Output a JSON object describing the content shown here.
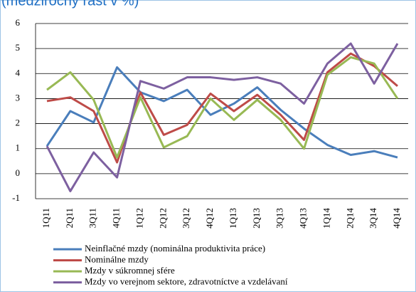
{
  "chart_data": {
    "type": "line",
    "title": "(medziročný rast v %)",
    "categories": [
      "1Q11",
      "2Q11",
      "3Q11",
      "4Q11",
      "1Q12",
      "2Q12",
      "3Q12",
      "4Q12",
      "1Q13",
      "2Q13",
      "3Q13",
      "4Q13",
      "1Q14",
      "2Q14",
      "3Q14",
      "4Q14"
    ],
    "series": [
      {
        "name": "Neinflačné mzdy (nominálna produktivita práce)",
        "color": "#4a7ebb",
        "values": [
          1.1,
          2.5,
          2.05,
          4.25,
          3.25,
          2.9,
          3.35,
          2.35,
          2.8,
          3.45,
          2.55,
          1.8,
          1.15,
          0.75,
          0.9,
          0.65
        ]
      },
      {
        "name": "Nominálne mzdy",
        "color": "#be4b48",
        "values": [
          2.9,
          3.05,
          2.5,
          0.45,
          3.25,
          1.55,
          1.95,
          3.2,
          2.5,
          3.15,
          2.35,
          1.35,
          4.05,
          4.8,
          4.3,
          3.5
        ]
      },
      {
        "name": "Mzdy v súkromnej sfére",
        "color": "#98b954",
        "values": [
          3.35,
          4.05,
          2.95,
          0.65,
          3.05,
          1.05,
          1.5,
          3.0,
          2.15,
          2.95,
          2.15,
          1.0,
          3.95,
          4.65,
          4.4,
          3.0
        ]
      },
      {
        "name": "Mzdy vo verejnom sektore, zdravotníctve a vzdelávaní",
        "color": "#7d60a0",
        "values": [
          1.1,
          -0.7,
          0.85,
          -0.15,
          3.7,
          3.4,
          3.85,
          3.85,
          3.75,
          3.85,
          3.6,
          2.8,
          4.4,
          5.2,
          3.6,
          5.2
        ]
      }
    ],
    "ylim": [
      -1,
      6
    ],
    "yticks": [
      -1,
      0,
      1,
      2,
      3,
      4,
      5,
      6
    ],
    "grid": true
  }
}
